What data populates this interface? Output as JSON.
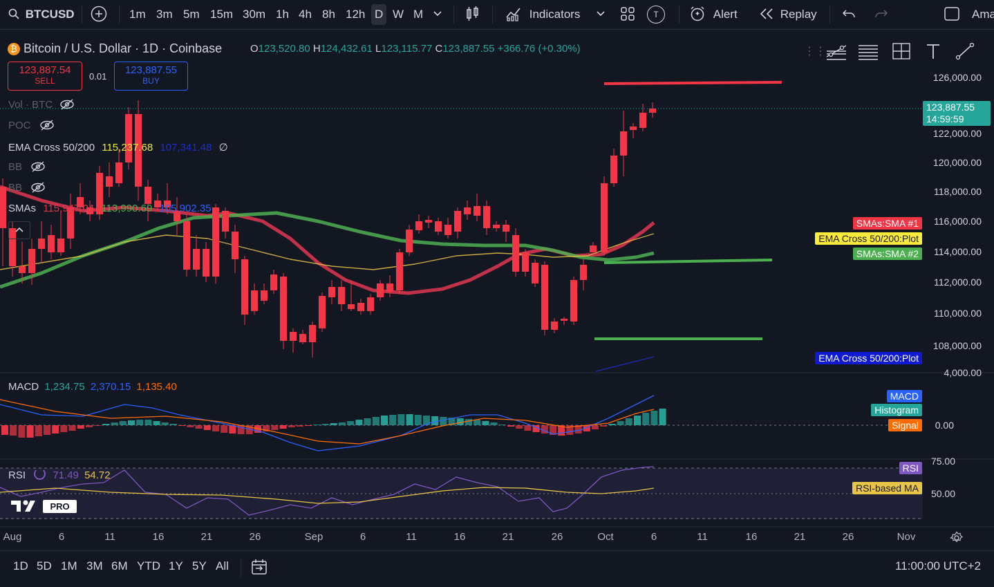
{
  "toolbar": {
    "symbol": "BTCUSD",
    "intervals": [
      "1m",
      "3m",
      "5m",
      "15m",
      "30m",
      "1h",
      "4h",
      "8h",
      "12h",
      "D",
      "W",
      "M"
    ],
    "selected_interval": "D",
    "indicators_label": "Indicators",
    "alert_label": "Alert",
    "replay_label": "Replay",
    "account_label": "Ama",
    "t_badge": "T"
  },
  "header": {
    "title": "Bitcoin / U.S. Dollar · 1D · Coinbase",
    "o_label": "O",
    "o": "123,520.80",
    "h_label": "H",
    "h": "124,432.61",
    "l_label": "L",
    "l": "123,115.77",
    "c_label": "C",
    "c": "123,887.55",
    "change": "+366.76 (+0.30%)"
  },
  "trade": {
    "sell_price": "123,887.54",
    "sell_label": "SELL",
    "spread": "0.01",
    "buy_price": "123,887.55",
    "buy_label": "BUY"
  },
  "indicators": {
    "vol": "Vol · BTC",
    "poc": "POC",
    "ema_name": "EMA Cross 50/200",
    "ema_v1": "115,237.68",
    "ema_v2": "107,341.48",
    "bb1": "BB",
    "bb2": "BB",
    "smas_name": "SMAs",
    "sma_v1": "115,947.04",
    "sma_v2": "113,990.69",
    "sma_v3": "105,902.35"
  },
  "price_axis": {
    "labels": [
      "126,000.00",
      "122,000.00",
      "120,000.00",
      "118,000.00",
      "116,000.00",
      "114,000.00",
      "112,000.00",
      "110,000.00",
      "108,000.00",
      "4,000.00"
    ],
    "current_price": "123,887.55",
    "countdown": "14:59:59",
    "tag_sma1": "SMAs:SMA #1",
    "tag_ema_plot": "EMA Cross 50/200:Plot",
    "tag_sma2": "SMAs:SMA #2",
    "tag_ema_plot2": "EMA Cross 50/200:Plot"
  },
  "macd": {
    "name": "MACD",
    "v1": "1,234.75",
    "v2": "2,370.15",
    "v3": "1,135.40",
    "tag_macd": "MACD",
    "tag_hist": "Histogram",
    "tag_signal": "Signal",
    "zero": "0.00"
  },
  "rsi": {
    "name": "RSI",
    "v1": "71.49",
    "v2": "54.72",
    "tag_rsi": "RSI",
    "tag_ma": "RSI-based MA",
    "l75": "75.00",
    "l50": "50.00"
  },
  "time_axis": [
    "Aug",
    "6",
    "11",
    "16",
    "21",
    "26",
    "Sep",
    "6",
    "11",
    "16",
    "21",
    "26",
    "Oct",
    "6",
    "11",
    "16",
    "21",
    "26",
    "Nov"
  ],
  "bottombar": {
    "ranges": [
      "1D",
      "5D",
      "1M",
      "3M",
      "6M",
      "YTD",
      "1Y",
      "5Y",
      "All"
    ],
    "clock": "11:00:00 UTC+2"
  },
  "logo_text": "PRO",
  "colors": {
    "up": "#26a69a",
    "down": "#f23645",
    "sma1": "#e0364d",
    "sma2": "#4caf50",
    "ema": "#e8c547",
    "bg": "#131722"
  }
}
